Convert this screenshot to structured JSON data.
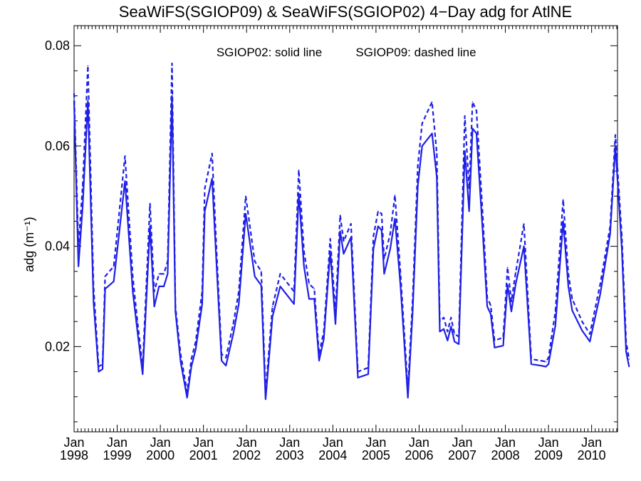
{
  "chart_data": {
    "type": "line",
    "title": "SeaWiFS(SGIOP09) & SeaWiFS(SGIOP02) 4−Day adg for AtlNE",
    "ylabel": "adg (m⁻¹)",
    "xlabel": "",
    "annotation_solid": "SGIOP02: solid line",
    "annotation_dashed": "SGIOP09: dashed line",
    "xlim": [
      1998.0,
      2010.6
    ],
    "ylim": [
      0.003,
      0.084
    ],
    "grid": false,
    "line_color": "#1f1fe6",
    "y_ticks": [
      {
        "value": 0.02,
        "label": "0.02"
      },
      {
        "value": 0.04,
        "label": "0.04"
      },
      {
        "value": 0.06,
        "label": "0.06"
      },
      {
        "value": 0.08,
        "label": "0.08"
      }
    ],
    "x_ticks": [
      {
        "value": 1998,
        "month": "Jan",
        "year": "1998"
      },
      {
        "value": 1999,
        "month": "Jan",
        "year": "1999"
      },
      {
        "value": 2000,
        "month": "Jan",
        "year": "2000"
      },
      {
        "value": 2001,
        "month": "Jan",
        "year": "2001"
      },
      {
        "value": 2002,
        "month": "Jan",
        "year": "2002"
      },
      {
        "value": 2003,
        "month": "Jan",
        "year": "2003"
      },
      {
        "value": 2004,
        "month": "Jan",
        "year": "2004"
      },
      {
        "value": 2005,
        "month": "Jan",
        "year": "2005"
      },
      {
        "value": 2006,
        "month": "Jan",
        "year": "2006"
      },
      {
        "value": 2007,
        "month": "Jan",
        "year": "2007"
      },
      {
        "value": 2008,
        "month": "Jan",
        "year": "2008"
      },
      {
        "value": 2009,
        "month": "Jan",
        "year": "2009"
      },
      {
        "value": 2010,
        "month": "Jan",
        "year": "2010"
      }
    ],
    "series": [
      {
        "style": "solid",
        "points": [
          [
            1998.0,
            0.069
          ],
          [
            1998.1,
            0.036
          ],
          [
            1998.2,
            0.048
          ],
          [
            1998.32,
            0.069
          ],
          [
            1998.45,
            0.029
          ],
          [
            1998.57,
            0.015
          ],
          [
            1998.66,
            0.0155
          ],
          [
            1998.72,
            0.0315
          ],
          [
            1998.92,
            0.033
          ],
          [
            1999.18,
            0.053
          ],
          [
            1999.36,
            0.031
          ],
          [
            1999.47,
            0.023
          ],
          [
            1999.59,
            0.0145
          ],
          [
            1999.76,
            0.044
          ],
          [
            1999.86,
            0.028
          ],
          [
            1999.97,
            0.032
          ],
          [
            2000.08,
            0.032
          ],
          [
            2000.17,
            0.0345
          ],
          [
            2000.27,
            0.07
          ],
          [
            2000.35,
            0.027
          ],
          [
            2000.47,
            0.017
          ],
          [
            2000.62,
            0.0098
          ],
          [
            2000.72,
            0.016
          ],
          [
            2000.82,
            0.0195
          ],
          [
            2000.97,
            0.0285
          ],
          [
            2001.03,
            0.047
          ],
          [
            2001.2,
            0.0535
          ],
          [
            2001.3,
            0.037
          ],
          [
            2001.42,
            0.0172
          ],
          [
            2001.52,
            0.0162
          ],
          [
            2001.69,
            0.0225
          ],
          [
            2001.82,
            0.0285
          ],
          [
            2001.98,
            0.0465
          ],
          [
            2002.19,
            0.034
          ],
          [
            2002.34,
            0.0322
          ],
          [
            2002.44,
            0.0095
          ],
          [
            2002.6,
            0.026
          ],
          [
            2002.78,
            0.032
          ],
          [
            2003.1,
            0.0285
          ],
          [
            2003.21,
            0.0505
          ],
          [
            2003.33,
            0.036
          ],
          [
            2003.45,
            0.0295
          ],
          [
            2003.57,
            0.0295
          ],
          [
            2003.68,
            0.0172
          ],
          [
            2003.79,
            0.0215
          ],
          [
            2003.94,
            0.039
          ],
          [
            2004.06,
            0.0245
          ],
          [
            2004.17,
            0.043
          ],
          [
            2004.25,
            0.0385
          ],
          [
            2004.42,
            0.0418
          ],
          [
            2004.58,
            0.0138
          ],
          [
            2004.82,
            0.0145
          ],
          [
            2004.94,
            0.0395
          ],
          [
            2005.05,
            0.044
          ],
          [
            2005.13,
            0.0432
          ],
          [
            2005.19,
            0.0345
          ],
          [
            2005.33,
            0.0395
          ],
          [
            2005.44,
            0.0455
          ],
          [
            2005.57,
            0.032
          ],
          [
            2005.74,
            0.0098
          ],
          [
            2005.85,
            0.027
          ],
          [
            2005.97,
            0.052
          ],
          [
            2006.07,
            0.06
          ],
          [
            2006.3,
            0.0625
          ],
          [
            2006.41,
            0.0538
          ],
          [
            2006.48,
            0.023
          ],
          [
            2006.57,
            0.0235
          ],
          [
            2006.66,
            0.0212
          ],
          [
            2006.74,
            0.024
          ],
          [
            2006.82,
            0.021
          ],
          [
            2006.92,
            0.0205
          ],
          [
            2007.06,
            0.059
          ],
          [
            2007.16,
            0.047
          ],
          [
            2007.24,
            0.0635
          ],
          [
            2007.33,
            0.0625
          ],
          [
            2007.47,
            0.0435
          ],
          [
            2007.58,
            0.028
          ],
          [
            2007.66,
            0.0265
          ],
          [
            2007.75,
            0.0198
          ],
          [
            2007.95,
            0.0202
          ],
          [
            2008.05,
            0.0323
          ],
          [
            2008.14,
            0.027
          ],
          [
            2008.24,
            0.0325
          ],
          [
            2008.43,
            0.04
          ],
          [
            2008.6,
            0.0165
          ],
          [
            2008.82,
            0.0162
          ],
          [
            2008.94,
            0.016
          ],
          [
            2009.0,
            0.0165
          ],
          [
            2009.16,
            0.0242
          ],
          [
            2009.34,
            0.045
          ],
          [
            2009.46,
            0.032
          ],
          [
            2009.55,
            0.0272
          ],
          [
            2009.78,
            0.0232
          ],
          [
            2009.96,
            0.021
          ],
          [
            2010.2,
            0.0305
          ],
          [
            2010.43,
            0.0425
          ],
          [
            2010.55,
            0.06
          ],
          [
            2010.7,
            0.0395
          ],
          [
            2010.8,
            0.019
          ],
          [
            2010.87,
            0.016
          ]
        ]
      },
      {
        "style": "dashed",
        "points": [
          [
            1998.0,
            0.0705
          ],
          [
            1998.1,
            0.04
          ],
          [
            1998.2,
            0.052
          ],
          [
            1998.32,
            0.076
          ],
          [
            1998.45,
            0.032
          ],
          [
            1998.57,
            0.016
          ],
          [
            1998.66,
            0.0165
          ],
          [
            1998.72,
            0.034
          ],
          [
            1998.92,
            0.036
          ],
          [
            1999.18,
            0.058
          ],
          [
            1999.36,
            0.034
          ],
          [
            1999.47,
            0.025
          ],
          [
            1999.59,
            0.016
          ],
          [
            1999.76,
            0.0485
          ],
          [
            1999.86,
            0.031
          ],
          [
            1999.97,
            0.0345
          ],
          [
            2000.08,
            0.0345
          ],
          [
            2000.17,
            0.037
          ],
          [
            2000.27,
            0.0765
          ],
          [
            2000.35,
            0.028
          ],
          [
            2000.47,
            0.0185
          ],
          [
            2000.62,
            0.011
          ],
          [
            2000.72,
            0.0175
          ],
          [
            2000.82,
            0.021
          ],
          [
            2000.97,
            0.031
          ],
          [
            2001.03,
            0.0515
          ],
          [
            2001.2,
            0.0585
          ],
          [
            2001.3,
            0.04
          ],
          [
            2001.42,
            0.0185
          ],
          [
            2001.52,
            0.0178
          ],
          [
            2001.69,
            0.0245
          ],
          [
            2001.82,
            0.031
          ],
          [
            2001.98,
            0.05
          ],
          [
            2002.19,
            0.037
          ],
          [
            2002.34,
            0.035
          ],
          [
            2002.44,
            0.011
          ],
          [
            2002.6,
            0.028
          ],
          [
            2002.78,
            0.0345
          ],
          [
            2003.1,
            0.031
          ],
          [
            2003.21,
            0.0552
          ],
          [
            2003.33,
            0.039
          ],
          [
            2003.45,
            0.0325
          ],
          [
            2003.57,
            0.0315
          ],
          [
            2003.68,
            0.0185
          ],
          [
            2003.79,
            0.023
          ],
          [
            2003.94,
            0.0415
          ],
          [
            2004.06,
            0.027
          ],
          [
            2004.17,
            0.0462
          ],
          [
            2004.25,
            0.041
          ],
          [
            2004.42,
            0.0445
          ],
          [
            2004.58,
            0.015
          ],
          [
            2004.82,
            0.0158
          ],
          [
            2004.94,
            0.042
          ],
          [
            2005.05,
            0.047
          ],
          [
            2005.13,
            0.0465
          ],
          [
            2005.19,
            0.0375
          ],
          [
            2005.33,
            0.0425
          ],
          [
            2005.44,
            0.0502
          ],
          [
            2005.57,
            0.0345
          ],
          [
            2005.74,
            0.0115
          ],
          [
            2005.85,
            0.0295
          ],
          [
            2005.97,
            0.056
          ],
          [
            2006.07,
            0.0645
          ],
          [
            2006.3,
            0.0688
          ],
          [
            2006.41,
            0.0585
          ],
          [
            2006.48,
            0.025
          ],
          [
            2006.57,
            0.0258
          ],
          [
            2006.66,
            0.023
          ],
          [
            2006.74,
            0.0258
          ],
          [
            2006.82,
            0.0225
          ],
          [
            2006.92,
            0.022
          ],
          [
            2007.06,
            0.066
          ],
          [
            2007.16,
            0.0515
          ],
          [
            2007.24,
            0.0688
          ],
          [
            2007.33,
            0.067
          ],
          [
            2007.47,
            0.047
          ],
          [
            2007.58,
            0.0298
          ],
          [
            2007.66,
            0.0282
          ],
          [
            2007.75,
            0.0212
          ],
          [
            2007.95,
            0.0218
          ],
          [
            2008.05,
            0.0358
          ],
          [
            2008.14,
            0.029
          ],
          [
            2008.24,
            0.0348
          ],
          [
            2008.43,
            0.0445
          ],
          [
            2008.6,
            0.0175
          ],
          [
            2008.82,
            0.0172
          ],
          [
            2008.94,
            0.017
          ],
          [
            2009.0,
            0.0178
          ],
          [
            2009.16,
            0.027
          ],
          [
            2009.34,
            0.0493
          ],
          [
            2009.46,
            0.0345
          ],
          [
            2009.55,
            0.0295
          ],
          [
            2009.78,
            0.025
          ],
          [
            2009.96,
            0.0225
          ],
          [
            2010.2,
            0.0325
          ],
          [
            2010.43,
            0.044
          ],
          [
            2010.55,
            0.0622
          ],
          [
            2010.7,
            0.042
          ],
          [
            2010.8,
            0.021
          ],
          [
            2010.87,
            0.0175
          ]
        ]
      }
    ]
  }
}
